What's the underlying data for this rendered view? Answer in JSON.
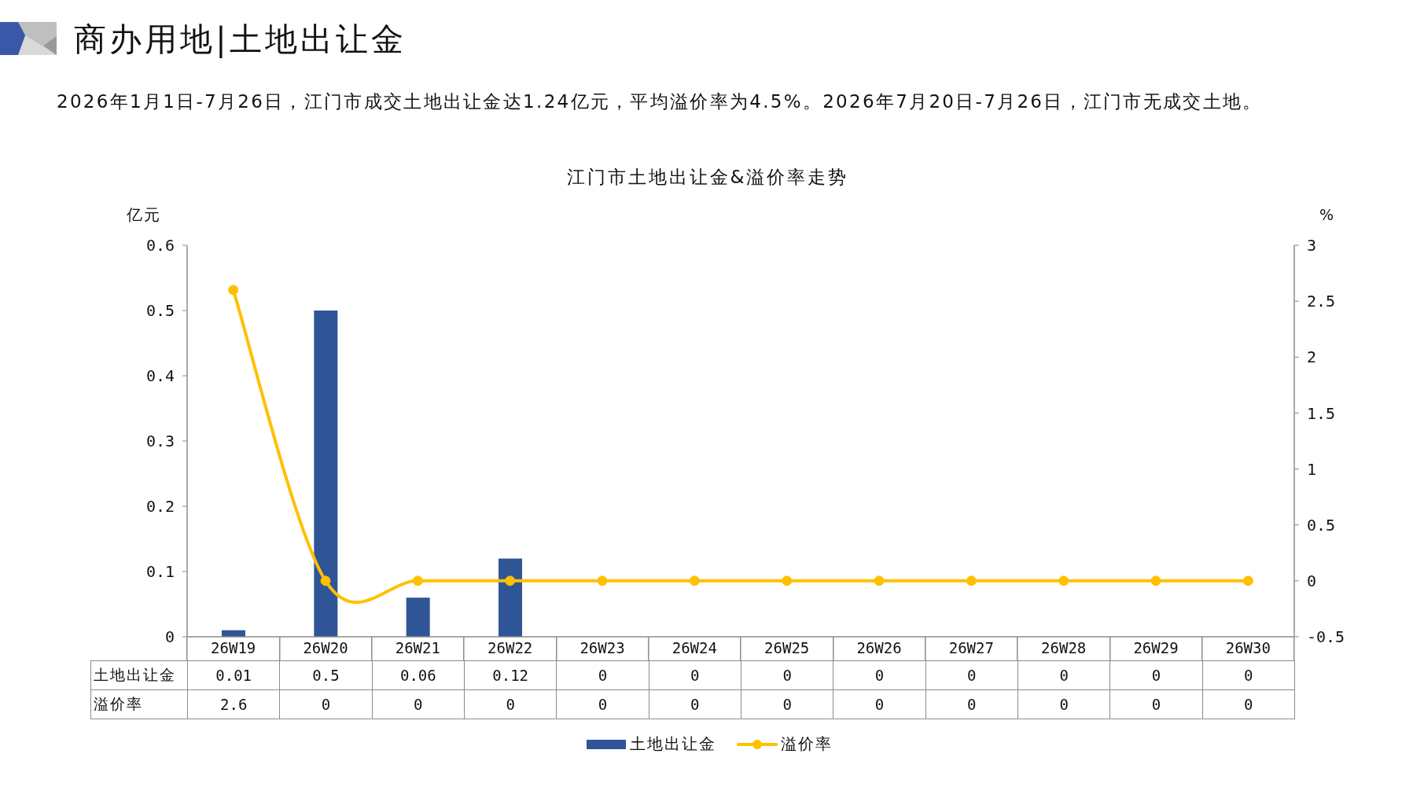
{
  "chart_data": {
    "type": "bar",
    "title": "商办用地|土地出让金",
    "subtitle": "2026年1月1日-7月26日，江门市成交土地出让金达1.24亿元，平均溢价率为4.5%。2026年7月20日-7月26日，江门市无成交土地。",
    "annotations": [
      "江门市土地出让金&溢价率走势"
    ],
    "categories": [
      "26W19",
      "26W20",
      "26W21",
      "26W22",
      "26W23",
      "26W24",
      "26W25",
      "26W26",
      "26W27",
      "26W28",
      "26W29",
      "26W30"
    ],
    "series": [
      {
        "name": "土地出让金",
        "color": "#2f5597",
        "values": [
          0.01,
          0.5,
          0.06,
          0.12,
          0,
          0,
          0,
          0,
          0,
          0,
          0,
          0
        ]
      },
      {
        "name": "溢价率",
        "type": "line",
        "axis": "y2",
        "color": "#ffc000",
        "values": [
          2.6,
          0,
          0,
          0,
          0,
          0,
          0,
          0,
          0,
          0,
          0,
          0
        ]
      }
    ],
    "ylabel": "亿元",
    "y2label": "%",
    "ylim": [
      0,
      0.6
    ],
    "yticks": [
      0,
      0.1,
      0.2,
      0.3,
      0.4,
      0.5,
      0.6
    ],
    "y2lim": [
      -0.5,
      3
    ],
    "y2ticks": [
      -0.5,
      0,
      0.5,
      1,
      1.5,
      2,
      2.5,
      3
    ],
    "marker": "circle",
    "grid": false,
    "legend": "bottom",
    "data_labels": true
  }
}
